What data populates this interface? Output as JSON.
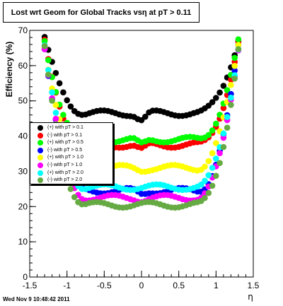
{
  "chart_data": {
    "type": "scatter",
    "title": "Lost wrt Geom for Global Tracks vsη at pT > 0.11",
    "xlabel": "η",
    "ylabel": "Efficiency (%)",
    "xlim": [
      -1.5,
      1.5
    ],
    "ylim": [
      0,
      70
    ],
    "x_ticks": [
      "-1.5",
      "-1",
      "-0.5",
      "0",
      "0.5",
      "1",
      "1.5"
    ],
    "y_ticks": [
      "0",
      "10",
      "20",
      "30",
      "40",
      "50",
      "60",
      "70"
    ],
    "legend_position": "left-middle",
    "grid": false,
    "series": [
      {
        "name": "(+) with pT > 0.1",
        "color": "#000000",
        "center": 46.5,
        "dip": 2.0
      },
      {
        "name": "(-) with pT > 0.1",
        "color": "#ff0000",
        "center": 37.5,
        "dip": 1.5
      },
      {
        "name": "(+) with pT > 0.5",
        "color": "#00ff00",
        "center": 39.0,
        "dip": 1.5
      },
      {
        "name": "(-) with pT > 0.5",
        "color": "#0000ff",
        "center": 24.5,
        "dip": 1.0
      },
      {
        "name": "(+) with pT > 1.0",
        "color": "#ffff00",
        "center": 31.0,
        "dip": 0.5
      },
      {
        "name": "(-) with pT > 1.0",
        "color": "#ff00ff",
        "center": 22.5,
        "dip": 0.5
      },
      {
        "name": "(+) with pT > 2.0",
        "color": "#00ffff",
        "center": 25.5,
        "dip": 0.0
      },
      {
        "name": "(-) with pT > 2.0",
        "color": "#66aa44",
        "center": 20.5,
        "dip": 0.0
      }
    ]
  },
  "timestamp": "Wed Nov  9 10:48:42 2011"
}
